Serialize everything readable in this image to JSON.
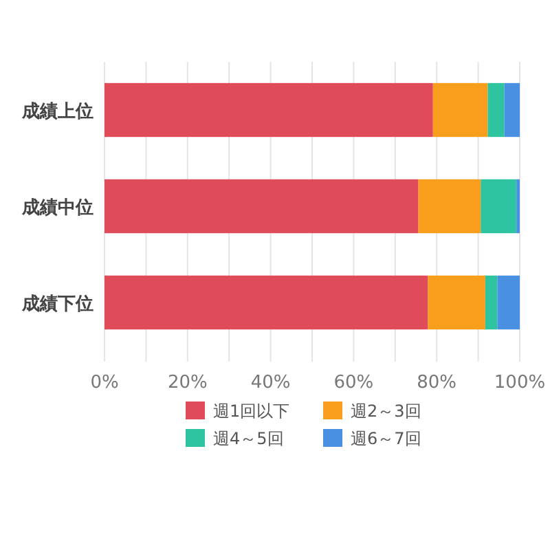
{
  "chart_data": {
    "type": "bar",
    "orientation": "horizontal",
    "stacked": true,
    "categories": [
      "成績上位",
      "成績中位",
      "成績下位"
    ],
    "series": [
      {
        "name": "週1回以下",
        "color": "#e04b5a",
        "values": [
          79.1,
          75.6,
          77.9
        ]
      },
      {
        "name": "週2～3回",
        "color": "#f99d1c",
        "values": [
          13.2,
          15,
          13.8
        ]
      },
      {
        "name": "週4～5回",
        "color": "#2ec4a0",
        "values": [
          4,
          8.6,
          2.9
        ]
      },
      {
        "name": "週6～7回",
        "color": "#4a90e2",
        "values": [
          3.7,
          0.8,
          5.4
        ]
      }
    ],
    "xlim": [
      0,
      100
    ],
    "xticks": [
      {
        "value": 0,
        "label": "0%"
      },
      {
        "value": 10,
        "label": null
      },
      {
        "value": 20,
        "label": "20%"
      },
      {
        "value": 30,
        "label": null
      },
      {
        "value": 40,
        "label": "40%"
      },
      {
        "value": 50,
        "label": null
      },
      {
        "value": 60,
        "label": "60%"
      },
      {
        "value": 70,
        "label": null
      },
      {
        "value": 80,
        "label": "80%"
      },
      {
        "value": 90,
        "label": null
      },
      {
        "value": 100,
        "label": "100%"
      }
    ],
    "grid": "x",
    "legend": "bottom"
  }
}
